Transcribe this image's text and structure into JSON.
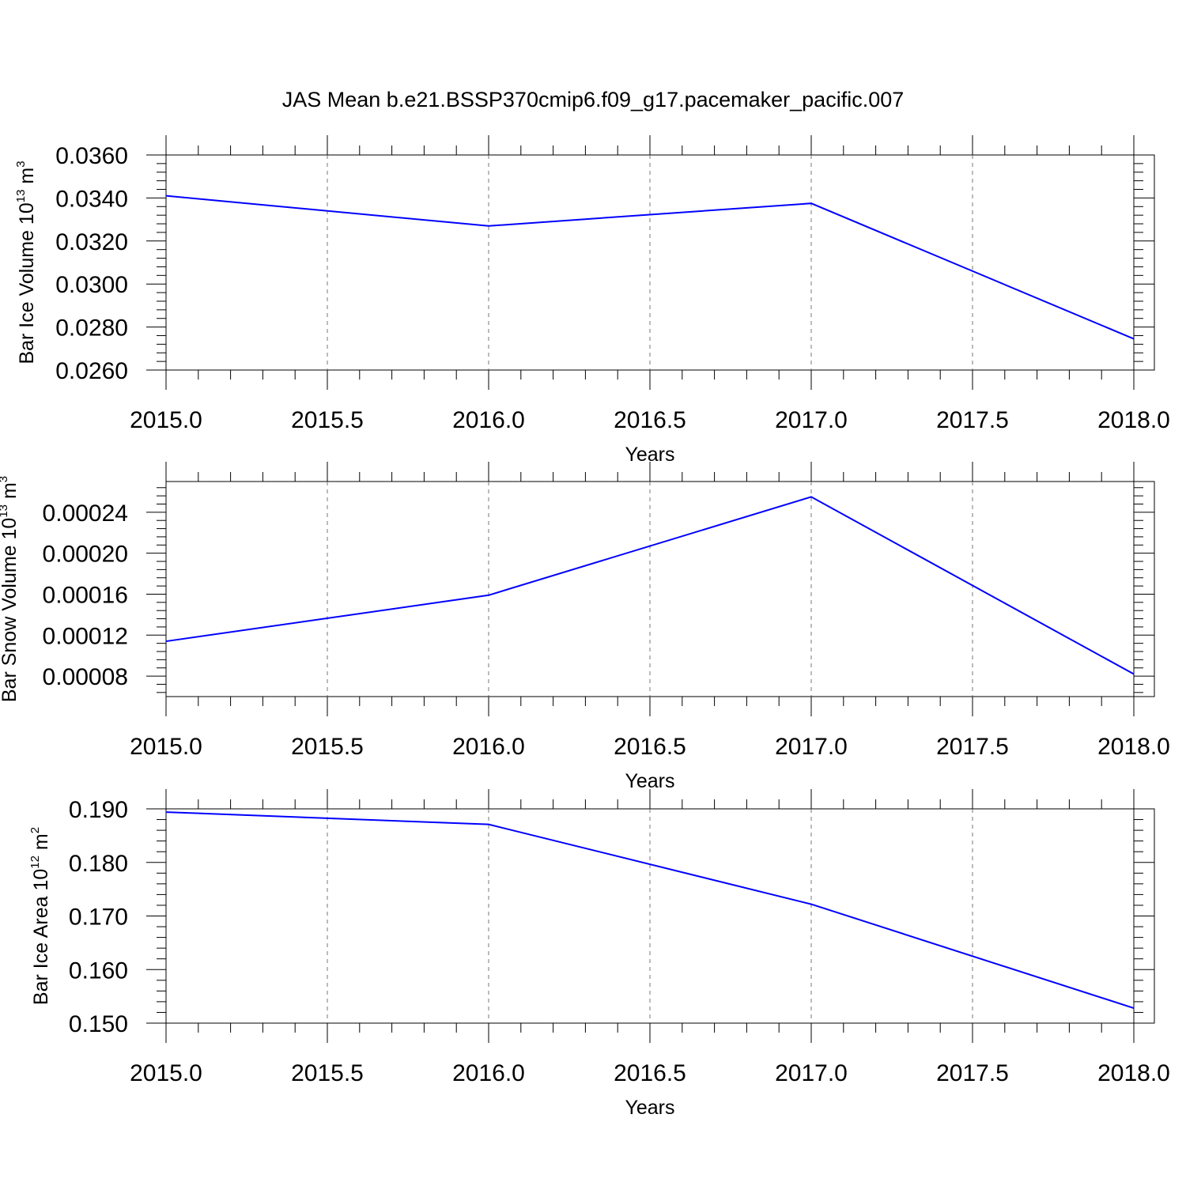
{
  "title": "JAS Mean b.e21.BSSP370cmip6.f09_g17.pacemaker_pacific.007",
  "line_color": "#0000ff",
  "chart_data": [
    {
      "type": "line",
      "ylabel": {
        "pre": "Bar Ice Volume 10",
        "exp": "13",
        "unit": " m",
        "uexp": "3"
      },
      "xlabel": "Years",
      "x": [
        2015,
        2016,
        2017,
        2018
      ],
      "series": [
        {
          "values": [
            0.0341,
            0.0327,
            0.03375,
            0.02745
          ]
        }
      ],
      "xlim": [
        2015,
        2018
      ],
      "xticks": [
        "2015.0",
        "2015.5",
        "2016.0",
        "2016.5",
        "2017.0",
        "2017.5",
        "2018.0"
      ],
      "ylim": [
        0.026,
        0.036
      ],
      "yticks": [
        "0.0260",
        "0.0280",
        "0.0300",
        "0.0320",
        "0.0340",
        "0.0360"
      ],
      "grid": "x-dashed"
    },
    {
      "type": "line",
      "ylabel": {
        "pre": "Bar Snow Volume 10",
        "exp": "13",
        "unit": " m",
        "uexp": "3"
      },
      "xlabel": "Years",
      "x": [
        2015,
        2016,
        2017,
        2018
      ],
      "series": [
        {
          "values": [
            0.000114,
            0.000159,
            0.000255,
            8.2e-05
          ]
        }
      ],
      "xlim": [
        2015,
        2018
      ],
      "xticks": [
        "2015.0",
        "2015.5",
        "2016.0",
        "2016.5",
        "2017.0",
        "2017.5",
        "2018.0"
      ],
      "ylim": [
        6e-05,
        0.00027
      ],
      "yticks": [
        "0.00008",
        "0.00012",
        "0.00016",
        "0.00020",
        "0.00024"
      ],
      "grid": "x-dashed"
    },
    {
      "type": "line",
      "ylabel": {
        "pre": "Bar Ice Area 10",
        "exp": "12",
        "unit": " m",
        "uexp": "2"
      },
      "xlabel": "Years",
      "x": [
        2015,
        2016,
        2017,
        2018
      ],
      "series": [
        {
          "values": [
            0.1894,
            0.1871,
            0.1722,
            0.1528
          ]
        }
      ],
      "xlim": [
        2015,
        2018
      ],
      "xticks": [
        "2015.0",
        "2015.5",
        "2016.0",
        "2016.5",
        "2017.0",
        "2017.5",
        "2018.0"
      ],
      "ylim": [
        0.15,
        0.19
      ],
      "yticks": [
        "0.150",
        "0.160",
        "0.170",
        "0.180",
        "0.190"
      ],
      "grid": "x-dashed"
    }
  ]
}
